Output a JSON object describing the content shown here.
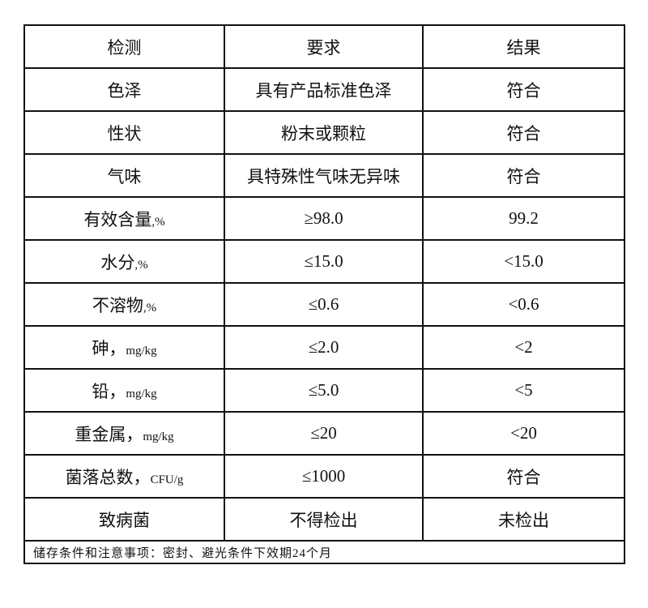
{
  "table": {
    "headers": [
      "检测",
      "要求",
      "结果"
    ],
    "rows": [
      {
        "item": "色泽",
        "unit": "",
        "requirement": "具有产品标准色泽",
        "result": "符合"
      },
      {
        "item": "性状",
        "unit": "",
        "requirement": "粉末或颗粒",
        "result": "符合"
      },
      {
        "item": "气味",
        "unit": "",
        "requirement": "具特殊性气味无异味",
        "result": "符合"
      },
      {
        "item": "有效含量",
        "unit": ",%",
        "requirement": "≥98.0",
        "result": "99.2"
      },
      {
        "item": "水分",
        "unit": ",%",
        "requirement": "≤15.0",
        "result": "<15.0"
      },
      {
        "item": "不溶物",
        "unit": ",%",
        "requirement": "≤0.6",
        "result": "<0.6"
      },
      {
        "item": "砷，",
        "unit": "mg/kg",
        "requirement": "≤2.0",
        "result": "<2"
      },
      {
        "item": "铅，",
        "unit": "mg/kg",
        "requirement": "≤5.0",
        "result": "<5"
      },
      {
        "item": "重金属，",
        "unit": "mg/kg",
        "requirement": "≤20",
        "result": "<20"
      },
      {
        "item": "菌落总数，",
        "unit": "CFU/g",
        "requirement": "≤1000",
        "result": "符合"
      },
      {
        "item": "致病菌",
        "unit": "",
        "requirement": "不得检出",
        "result": "未检出"
      }
    ],
    "footer": "储存条件和注意事项：密封、避光条件下效期24个月"
  }
}
